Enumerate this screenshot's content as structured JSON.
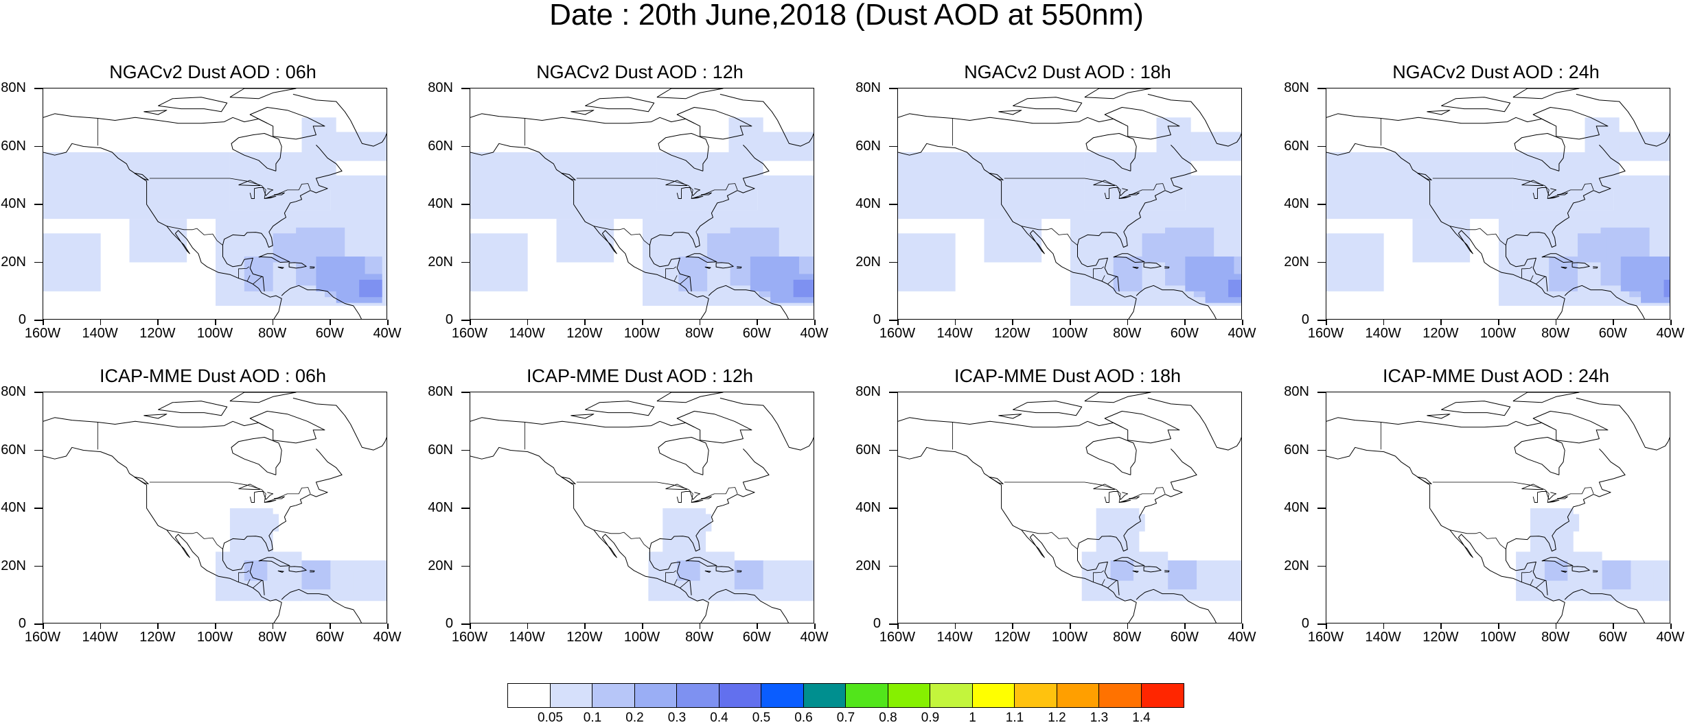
{
  "page": {
    "title": "Date : 20th June,2018 (Dust AOD at 550nm)"
  },
  "axes": {
    "lat_labels": [
      "80N",
      "60N",
      "40N",
      "20N",
      "0"
    ],
    "lon_labels": [
      "160W",
      "140W",
      "120W",
      "100W",
      "80W",
      "60W",
      "40W"
    ],
    "lat_range": [
      0,
      80
    ],
    "lon_range": [
      -160,
      -40
    ]
  },
  "panels": [
    {
      "title": "NGACv2 Dust AOD : 06h",
      "model": "NGACv2",
      "lead": "06h"
    },
    {
      "title": "NGACv2 Dust AOD : 12h",
      "model": "NGACv2",
      "lead": "12h"
    },
    {
      "title": "NGACv2 Dust AOD : 18h",
      "model": "NGACv2",
      "lead": "18h"
    },
    {
      "title": "NGACv2 Dust AOD : 24h",
      "model": "NGACv2",
      "lead": "24h"
    },
    {
      "title": "ICAP-MME Dust AOD : 06h",
      "model": "ICAP-MME",
      "lead": "06h"
    },
    {
      "title": "ICAP-MME Dust AOD : 12h",
      "model": "ICAP-MME",
      "lead": "12h"
    },
    {
      "title": "ICAP-MME Dust AOD : 18h",
      "model": "ICAP-MME",
      "lead": "18h"
    },
    {
      "title": "ICAP-MME Dust AOD : 24h",
      "model": "ICAP-MME",
      "lead": "24h"
    }
  ],
  "colorbar": {
    "labels": [
      "0.05",
      "0.1",
      "0.2",
      "0.3",
      "0.4",
      "0.5",
      "0.6",
      "0.7",
      "0.8",
      "0.9",
      "1",
      "1.1",
      "1.2",
      "1.3",
      "1.4"
    ],
    "colors": [
      "#ffffff",
      "#d6e0fb",
      "#b7c6f8",
      "#9aaef5",
      "#7e91f1",
      "#6270ee",
      "#0a5dff",
      "#008f8f",
      "#52e51b",
      "#86f000",
      "#c3f53c",
      "#ffff00",
      "#ffc20e",
      "#ff9f00",
      "#ff7200",
      "#ff2600"
    ]
  }
}
